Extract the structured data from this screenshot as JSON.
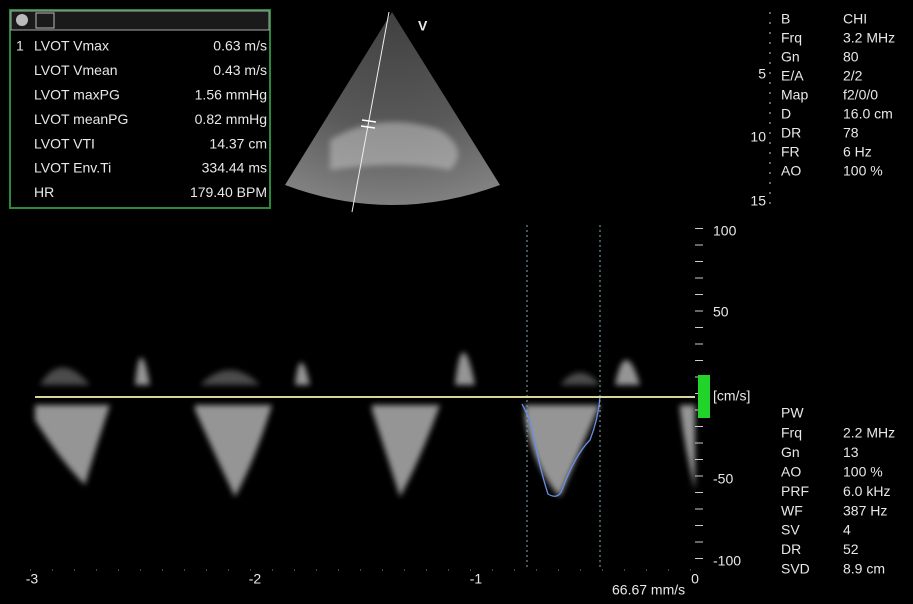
{
  "measurements": {
    "index_marker": "1",
    "rows": [
      {
        "label": "LVOT Vmax",
        "value": "0.63 m/s"
      },
      {
        "label": "LVOT Vmean",
        "value": "0.43 m/s"
      },
      {
        "label": "LVOT maxPG",
        "value": "1.56 mmHg"
      },
      {
        "label": "LVOT meanPG",
        "value": "0.82 mmHg"
      },
      {
        "label": "LVOT VTI",
        "value": "14.37 cm"
      },
      {
        "label": "LVOT Env.Ti",
        "value": "334.44 ms"
      },
      {
        "label": "HR",
        "value": "179.40 BPM"
      }
    ]
  },
  "probe_marker": "V",
  "depth_scale": [
    "5",
    "10",
    "15"
  ],
  "bmode_params": [
    {
      "label": "B",
      "value": "CHI"
    },
    {
      "label": "Frq",
      "value": "3.2 MHz"
    },
    {
      "label": "Gn",
      "value": "80"
    },
    {
      "label": "E/A",
      "value": "2/2"
    },
    {
      "label": "Map",
      "value": "f2/0/0"
    },
    {
      "label": "D",
      "value": "16.0 cm"
    },
    {
      "label": "DR",
      "value": "78"
    },
    {
      "label": "FR",
      "value": "6 Hz"
    },
    {
      "label": "AO",
      "value": "100 %"
    }
  ],
  "velocity_scale": {
    "labels": [
      "100",
      "50",
      "-50",
      "-100"
    ],
    "unit": "[cm/s]"
  },
  "time_scale": [
    "-3",
    "-2",
    "-1",
    "0"
  ],
  "sweep_speed": "66.67 mm/s",
  "pw_params": {
    "title": "PW",
    "rows": [
      {
        "label": "Frq",
        "value": "2.2 MHz"
      },
      {
        "label": "Gn",
        "value": "13"
      },
      {
        "label": "AO",
        "value": "100 %"
      },
      {
        "label": "PRF",
        "value": "6.0 kHz"
      },
      {
        "label": "WF",
        "value": "387 Hz"
      },
      {
        "label": "SV",
        "value": "4"
      },
      {
        "label": "DR",
        "value": "52"
      },
      {
        "label": "SVD",
        "value": "8.9 cm"
      }
    ]
  }
}
